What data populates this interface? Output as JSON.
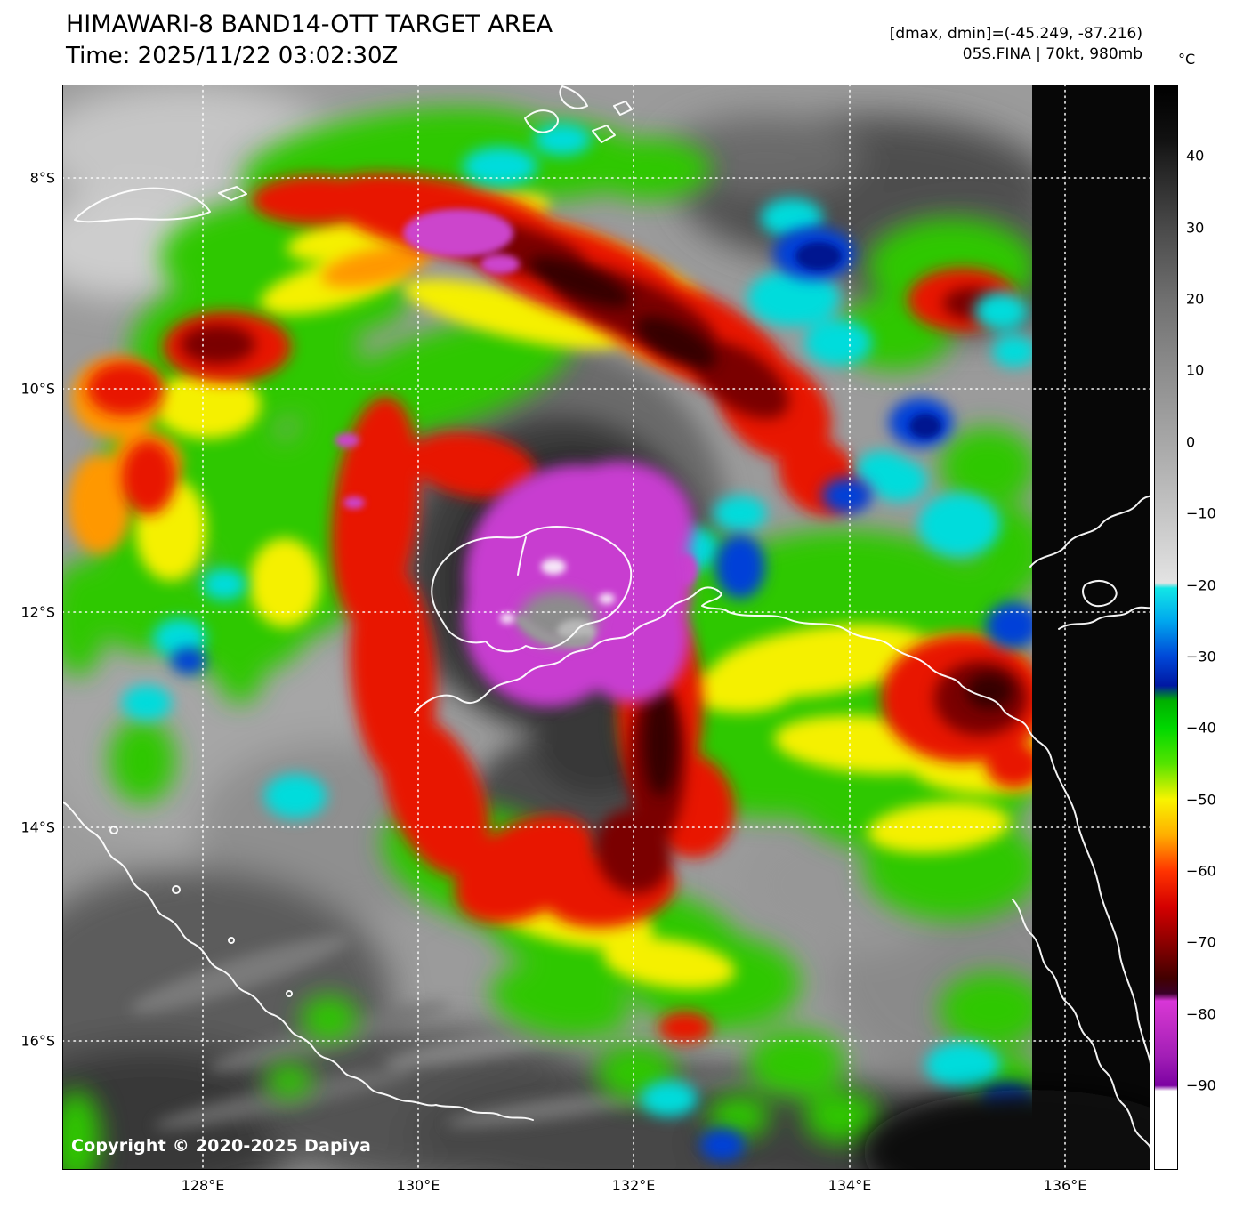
{
  "header": {
    "title": "HIMAWARI-8 BAND14-OTT TARGET AREA",
    "time": "Time: 2025/11/22 03:02:30Z"
  },
  "annotations": {
    "range": "[dmax, dmin]=(-45.249, -87.216)",
    "storm": "05S.FINA | 70kt, 980mb"
  },
  "colorbar": {
    "unit": "°C",
    "ticks": [
      {
        "label": "40",
        "v": 40
      },
      {
        "label": "30",
        "v": 30
      },
      {
        "label": "20",
        "v": 20
      },
      {
        "label": "10",
        "v": 10
      },
      {
        "label": "0",
        "v": 0
      },
      {
        "label": "−10",
        "v": -10
      },
      {
        "label": "−20",
        "v": -20
      },
      {
        "label": "−30",
        "v": -30
      },
      {
        "label": "−40",
        "v": -40
      },
      {
        "label": "−50",
        "v": -50
      },
      {
        "label": "−60",
        "v": -60
      },
      {
        "label": "−70",
        "v": -70
      },
      {
        "label": "−80",
        "v": -80
      },
      {
        "label": "−90",
        "v": -90
      }
    ]
  },
  "axes": {
    "lat_labels": [
      "8°S",
      "10°S",
      "12°S",
      "14°S",
      "16°S"
    ],
    "lon_labels": [
      "128°E",
      "130°E",
      "132°E",
      "134°E",
      "136°E"
    ]
  },
  "footer": {
    "copyright": "Copyright © 2020-2025 Dapiya"
  },
  "colors": {
    "coldest_magenta": "#c83cd0",
    "nodata_black": "#070707",
    "land_outline": "#ffffff",
    "grid": "#ffffff"
  }
}
